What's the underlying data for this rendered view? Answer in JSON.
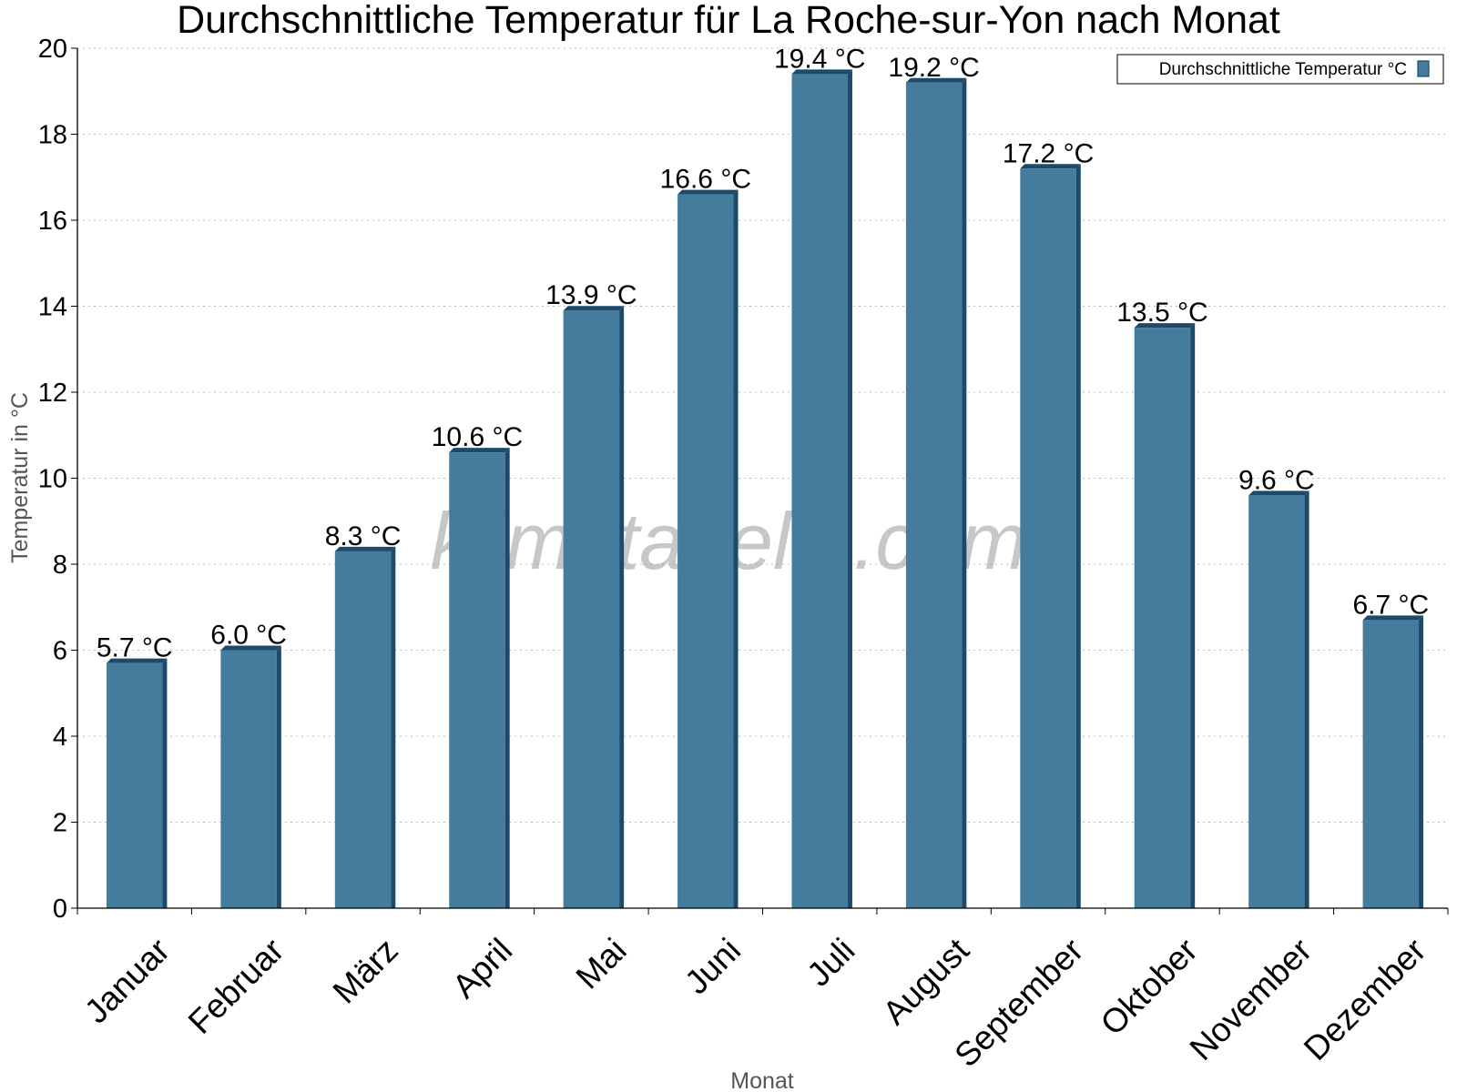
{
  "chart_data": {
    "type": "bar",
    "title": "Durchschnittliche Temperatur für La Roche-sur-Yon nach Monat",
    "xlabel": "Monat",
    "ylabel": "Temperatur in °C",
    "categories": [
      "Januar",
      "Februar",
      "März",
      "April",
      "Mai",
      "Juni",
      "Juli",
      "August",
      "September",
      "Oktober",
      "November",
      "Dezember"
    ],
    "series": [
      {
        "name": "Durchschnittliche Temperatur °C",
        "values": [
          5.7,
          6.0,
          8.3,
          10.6,
          13.9,
          16.6,
          19.4,
          19.2,
          17.2,
          13.5,
          9.6,
          6.7
        ],
        "labels": [
          "5.7 °C",
          "6.0 °C",
          "8.3 °C",
          "10.6 °C",
          "13.9 °C",
          "16.6 °C",
          "19.4 °C",
          "19.2 °C",
          "17.2 °C",
          "13.5 °C",
          "9.6 °C",
          "6.7 °C"
        ],
        "color": "#457b9d",
        "edge_color": "#1d4a6b"
      }
    ],
    "yticks": [
      0,
      2,
      4,
      6,
      8,
      10,
      12,
      14,
      16,
      18,
      20
    ],
    "ylim": [
      0,
      20
    ],
    "grid": true,
    "legend_position": "top-right",
    "watermark": "klimatabelle.com"
  }
}
